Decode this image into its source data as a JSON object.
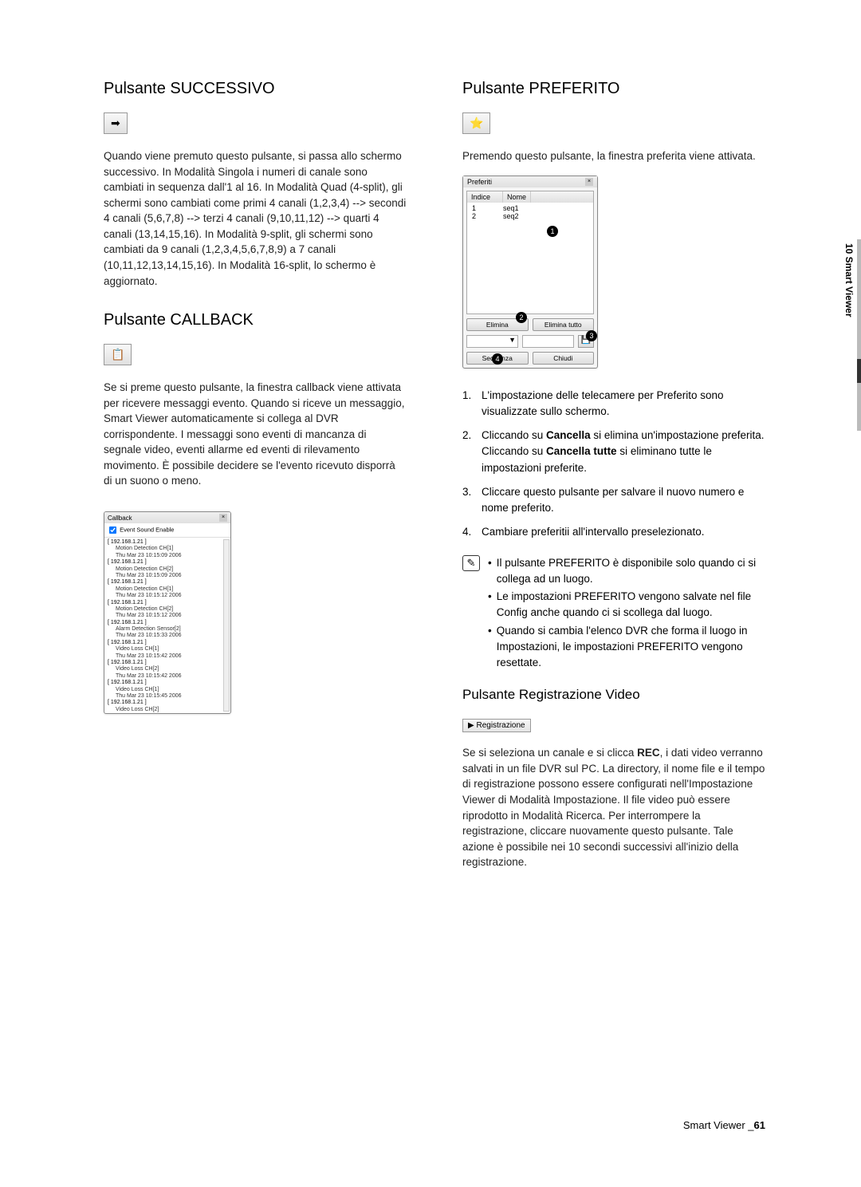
{
  "tab": {
    "label": "10 Smart Viewer"
  },
  "footer": {
    "text": "Smart Viewer _",
    "page": "61"
  },
  "left": {
    "s1": {
      "heading": "Pulsante SUCCESSIVO",
      "icon": "➡",
      "body": "Quando viene premuto questo pulsante, si passa allo schermo successivo. In Modalità Singola i numeri di canale sono cambiati in sequenza dall'1 al 16. In Modalità Quad (4-split), gli schermi sono cambiati come primi 4 canali (1,2,3,4) --> secondi 4 canali (5,6,7,8) --> terzi 4 canali (9,10,11,12) --> quarti 4 canali (13,14,15,16). In Modalità 9-split, gli schermi sono cambiati da 9 canali (1,2,3,4,5,6,7,8,9) a 7 canali (10,11,12,13,14,15,16). In Modalità 16-split, lo schermo è aggiornato."
    },
    "s2": {
      "heading": "Pulsante CALLBACK",
      "icon": "📋",
      "body": "Se si preme questo pulsante, la finestra callback viene attivata per ricevere messaggi evento. Quando si riceve un messaggio, Smart Viewer automaticamente si collega al DVR corrispondente. I messaggi sono eventi di mancanza di segnale video, eventi allarme ed eventi di rilevamento movimento. È possibile decidere se l'evento ricevuto disporrà di un suono o meno.",
      "win": {
        "title": "Callback",
        "check": "Event Sound Enable",
        "entries": [
          {
            "ip": "[ 192.168.1.21 ]",
            "ev": "Motion Detection CH[1]",
            "ts": "Thu Mar 23 10:15:09 2006"
          },
          {
            "ip": "[ 192.168.1.21 ]",
            "ev": "Motion Detection CH[2]",
            "ts": "Thu Mar 23 10:15:09 2006"
          },
          {
            "ip": "[ 192.168.1.21 ]",
            "ev": "Motion Detection CH[1]",
            "ts": "Thu Mar 23 10:15:12 2006"
          },
          {
            "ip": "[ 192.168.1.21 ]",
            "ev": "Motion Detection CH[2]",
            "ts": "Thu Mar 23 10:15:12 2006"
          },
          {
            "ip": "[ 192.168.1.21 ]",
            "ev": "Alarm Detection Sensor[2]",
            "ts": "Thu Mar 23 10:15:33 2006"
          },
          {
            "ip": "[ 192.168.1.21 ]",
            "ev": "Video Loss CH[1]",
            "ts": "Thu Mar 23 10:15:42 2006"
          },
          {
            "ip": "[ 192.168.1.21 ]",
            "ev": "Video Loss CH[2]",
            "ts": "Thu Mar 23 10:15:42 2006"
          },
          {
            "ip": "[ 192.168.1.21 ]",
            "ev": "Video Loss CH[1]",
            "ts": "Thu Mar 23 10:15:45 2006"
          },
          {
            "ip": "[ 192.168.1.21 ]",
            "ev": "Video Loss CH[2]",
            "ts": ""
          }
        ]
      }
    }
  },
  "right": {
    "s1": {
      "heading": "Pulsante PREFERITO",
      "icon": "⭐",
      "body": "Premendo questo pulsante, la finestra preferita viene attivata.",
      "win": {
        "title": "Preferiti",
        "col1": "Indice",
        "col2": "Nome",
        "rows": [
          {
            "i": "1",
            "n": "seq1"
          },
          {
            "i": "2",
            "n": "seq2"
          }
        ],
        "btn_delete": "Elimina",
        "btn_delete_all": "Elimina tutto",
        "btn_seq": "Sequenza",
        "btn_close": "Chiudi"
      },
      "list": {
        "i1": "L'impostazione delle telecamere per Preferito sono visualizzate sullo schermo.",
        "i2a": "Cliccando su ",
        "i2b": "Cancella",
        "i2c": " si elimina un'impostazione preferita. Cliccando su ",
        "i2d": "Cancella tutte",
        "i2e": " si eliminano tutte le impostazioni preferite.",
        "i3": "Cliccare questo pulsante per salvare il nuovo numero e nome preferito.",
        "i4": "Cambiare preferitii all'intervallo preselezionato."
      },
      "note_icon": "✎",
      "notes": {
        "n1": "Il pulsante PREFERITO è disponibile solo quando ci si collega ad un luogo.",
        "n2": "Le impostazioni PREFERITO vengono salvate nel file Config anche quando ci si scollega dal luogo.",
        "n3": "Quando si cambia l'elenco DVR che forma il luogo in Impostazioni, le impostazioni PREFERITO vengono resettate."
      }
    },
    "s2": {
      "heading": "Pulsante Registrazione Video",
      "btn": "▶ Registrazione",
      "body_a": "Se si seleziona un canale e si clicca ",
      "body_b": "REC",
      "body_c": ", i dati video verranno salvati in un file DVR sul PC. La directory, il nome file e il tempo di registrazione possono essere configurati nell'Impostazione Viewer di Modalità Impostazione. Il file video può essere riprodotto in Modalità Ricerca. Per interrompere la registrazione, cliccare nuovamente questo pulsante. Tale azione è possibile nei 10 secondi successivi all'inizio della registrazione."
    }
  }
}
